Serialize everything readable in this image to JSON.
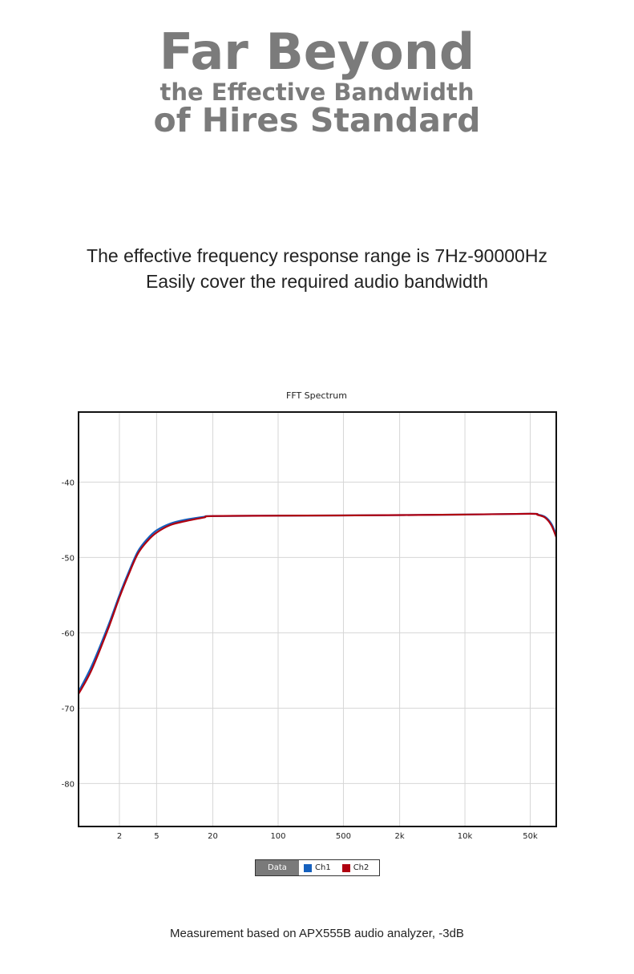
{
  "header": {
    "title": "Far Beyond",
    "line2": "the Effective Bandwidth",
    "line3": "of Hires Standard"
  },
  "subtitle": {
    "line1": "The effective frequency response range is 7Hz-90000Hz",
    "line2": "Easily cover the required audio bandwidth"
  },
  "footer": "Measurement based on APX555B audio analyzer, -3dB",
  "chart_data": {
    "type": "line",
    "title": "FFT Spectrum",
    "xlabel": "",
    "ylabel": "",
    "xscale": "log",
    "xlim": [
      0.73,
      95000
    ],
    "ylim": [
      -85.7,
      -30.7
    ],
    "grid": true,
    "legend_placement": "bottom",
    "legend_title": "Data",
    "xticks": [
      {
        "v": 2,
        "label": "2"
      },
      {
        "v": 5,
        "label": "5"
      },
      {
        "v": 20,
        "label": "20"
      },
      {
        "v": 100,
        "label": "100"
      },
      {
        "v": 500,
        "label": "500"
      },
      {
        "v": 2000,
        "label": "2k"
      },
      {
        "v": 10000,
        "label": "10k"
      },
      {
        "v": 50000,
        "label": "50k"
      }
    ],
    "yticks": [
      {
        "v": -40,
        "label": "-40"
      },
      {
        "v": -50,
        "label": "-50"
      },
      {
        "v": -60,
        "label": "-60"
      },
      {
        "v": -70,
        "label": "-70"
      },
      {
        "v": -80,
        "label": "-80"
      }
    ],
    "series": [
      {
        "name": "Ch1",
        "color": "#1560bd",
        "x": [
          0.73,
          1,
          1.5,
          2,
          2.5,
          3.15,
          4,
          5,
          7,
          10,
          16,
          20,
          100,
          1000,
          10000,
          50000,
          60000,
          72000,
          84000,
          95000
        ],
        "y": [
          -67.8,
          -64.5,
          -59.2,
          -55.0,
          -52.0,
          -49.2,
          -47.5,
          -46.4,
          -45.5,
          -45.0,
          -44.6,
          -44.5,
          -44.45,
          -44.4,
          -44.3,
          -44.2,
          -44.3,
          -44.6,
          -45.5,
          -47.0
        ]
      },
      {
        "name": "Ch2",
        "color": "#b00010",
        "x": [
          0.73,
          1,
          1.5,
          2,
          2.5,
          3.15,
          4,
          5,
          7,
          10,
          16,
          20,
          100,
          1000,
          10000,
          50000,
          60000,
          72000,
          84000,
          95000
        ],
        "y": [
          -68.1,
          -65.0,
          -59.6,
          -55.3,
          -52.3,
          -49.5,
          -47.8,
          -46.7,
          -45.7,
          -45.2,
          -44.7,
          -44.5,
          -44.45,
          -44.4,
          -44.3,
          -44.2,
          -44.35,
          -44.7,
          -45.7,
          -47.3
        ]
      }
    ]
  }
}
